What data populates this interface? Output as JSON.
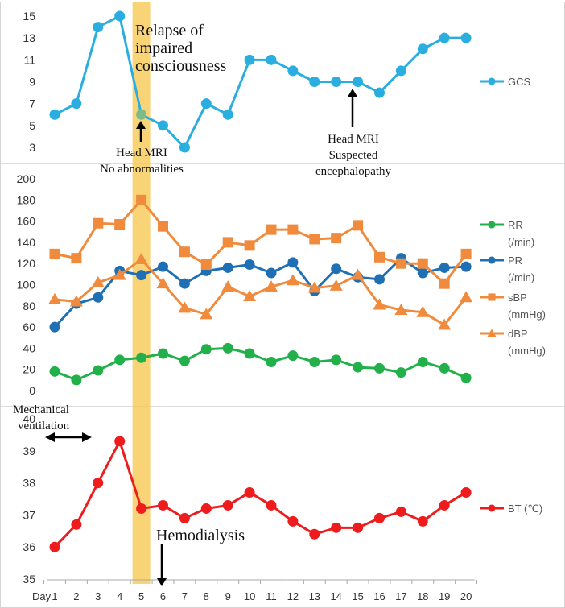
{
  "chart_data": [
    {
      "type": "line",
      "panel": "top",
      "x": [
        1,
        2,
        3,
        4,
        5,
        6,
        7,
        8,
        9,
        10,
        11,
        12,
        13,
        14,
        15,
        16,
        17,
        18,
        19,
        20
      ],
      "series": [
        {
          "name": "GCS",
          "color": "#2aaee0",
          "marker": "circle",
          "values": [
            6,
            7,
            14,
            15,
            6,
            5,
            3,
            7,
            6,
            11,
            11,
            10,
            9,
            9,
            9,
            8,
            10,
            12,
            13,
            13
          ]
        }
      ],
      "y_ticks": [
        "3",
        "5",
        "7",
        "9",
        "11",
        "13",
        "15"
      ],
      "ylim": [
        3,
        15
      ]
    },
    {
      "type": "line",
      "panel": "middle",
      "x": [
        1,
        2,
        3,
        4,
        5,
        6,
        7,
        8,
        9,
        10,
        11,
        12,
        13,
        14,
        15,
        16,
        17,
        18,
        19,
        20
      ],
      "series": [
        {
          "name": "RR",
          "unit": "(/min)",
          "color": "#22b04b",
          "marker": "circle",
          "values": [
            18,
            10,
            19,
            29,
            31,
            35,
            28,
            39,
            40,
            35,
            27,
            33,
            27,
            29,
            22,
            21,
            17,
            27,
            21,
            12
          ]
        },
        {
          "name": "PR",
          "unit": "(/min)",
          "color": "#1f6fb4",
          "marker": "circle",
          "values": [
            60,
            82,
            88,
            113,
            109,
            117,
            101,
            113,
            116,
            119,
            111,
            121,
            94,
            115,
            107,
            105,
            125,
            111,
            116,
            117
          ]
        },
        {
          "name": "sBP",
          "unit": "(mmHg)",
          "color": "#f08a3c",
          "marker": "square",
          "values": [
            129,
            125,
            158,
            157,
            180,
            155,
            131,
            119,
            140,
            137,
            152,
            152,
            143,
            144,
            156,
            126,
            120,
            120,
            101,
            129
          ]
        },
        {
          "name": "dBP",
          "unit": "(mmHg)",
          "color": "#f08a3c",
          "marker": "triangle",
          "values": [
            86,
            84,
            102,
            109,
            124,
            101,
            78,
            72,
            98,
            89,
            98,
            104,
            97,
            99,
            109,
            81,
            76,
            74,
            62,
            88
          ]
        }
      ],
      "y_ticks": [
        "0",
        "20",
        "40",
        "60",
        "80",
        "100",
        "120",
        "140",
        "160",
        "180",
        "200"
      ],
      "ylim": [
        0,
        200
      ]
    },
    {
      "type": "line",
      "panel": "bottom",
      "x": [
        1,
        2,
        3,
        4,
        5,
        6,
        7,
        8,
        9,
        10,
        11,
        12,
        13,
        14,
        15,
        16,
        17,
        18,
        19,
        20
      ],
      "series": [
        {
          "name": "BT (℃)",
          "color": "#ee1c1c",
          "marker": "circle",
          "values": [
            36.0,
            36.7,
            38.0,
            39.3,
            37.2,
            37.3,
            36.9,
            37.2,
            37.3,
            37.7,
            37.3,
            36.8,
            36.4,
            36.6,
            36.6,
            36.9,
            37.1,
            36.8,
            37.3,
            37.7
          ]
        }
      ],
      "y_ticks": [
        "35",
        "36",
        "37",
        "38",
        "39",
        "40"
      ],
      "ylim": [
        35,
        40
      ]
    }
  ],
  "x_axis": {
    "label": "Day",
    "ticks": [
      "1",
      "2",
      "3",
      "4",
      "5",
      "6",
      "7",
      "8",
      "9",
      "10",
      "11",
      "12",
      "13",
      "14",
      "15",
      "16",
      "17",
      "18",
      "19",
      "20"
    ],
    "highlight_day": 5,
    "highlight_color": "#f7c64a"
  },
  "annotations": {
    "relapse": [
      "Relapse of",
      "impaired",
      "consciousness"
    ],
    "mri1": [
      "Head MRI",
      "No abnormalities"
    ],
    "mri2": [
      "Head MRI",
      "Suspected",
      "encephalopathy"
    ],
    "ventilation": [
      "Mechanical",
      "ventilation"
    ],
    "hemodialysis": "Hemodialysis"
  }
}
